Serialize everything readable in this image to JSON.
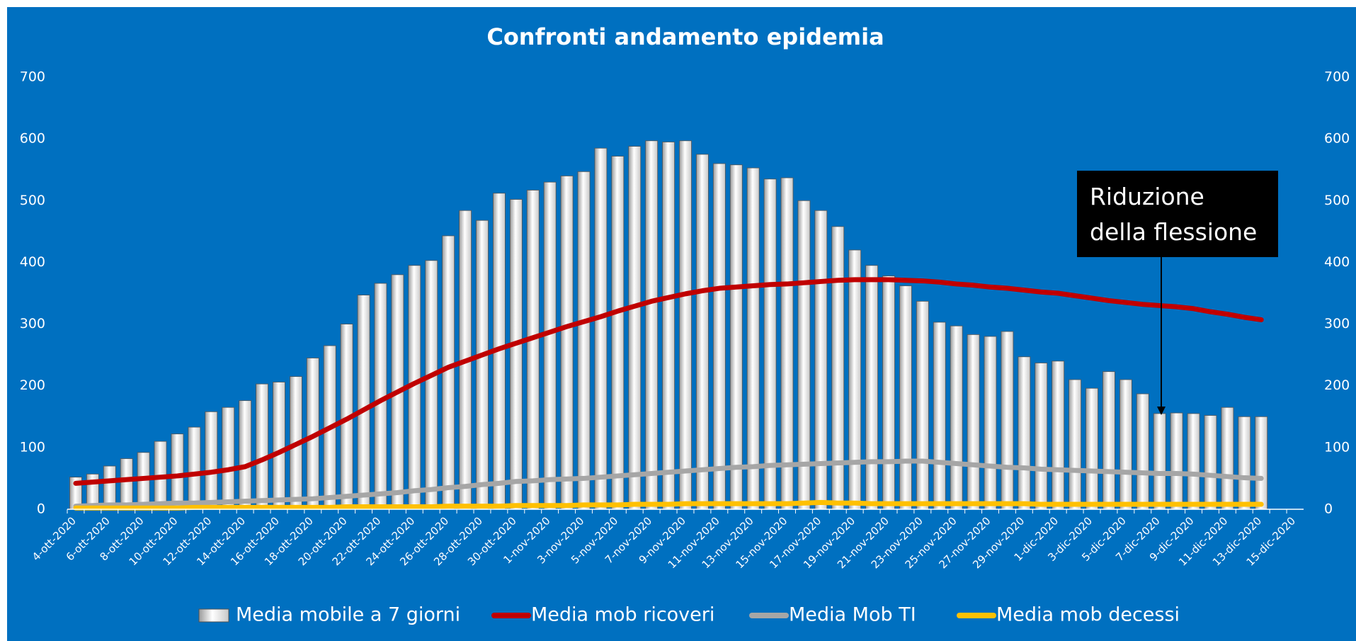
{
  "chart_data": {
    "type": "bar",
    "title": "Confronti andamento epidemia",
    "annotation": "Riduzione della flessione",
    "legend": "bottom",
    "grid": false,
    "categories": [
      "4-ott-2020",
      null,
      "6-ott-2020",
      null,
      "8-ott-2020",
      null,
      "10-ott-2020",
      null,
      "12-ott-2020",
      null,
      "14-ott-2020",
      null,
      "16-ott-2020",
      null,
      "18-ott-2020",
      null,
      "20-ott-2020",
      null,
      "22-ott-2020",
      null,
      "24-ott-2020",
      null,
      "26-ott-2020",
      null,
      "28-ott-2020",
      null,
      "30-ott-2020",
      null,
      "1-nov-2020",
      null,
      "3-nov-2020",
      null,
      "5-nov-2020",
      null,
      "7-nov-2020",
      null,
      "9-nov-2020",
      null,
      "11-nov-2020",
      null,
      "13-nov-2020",
      null,
      "15-nov-2020",
      null,
      "17-nov-2020",
      null,
      "19-nov-2020",
      null,
      "21-nov-2020",
      null,
      "23-nov-2020",
      null,
      "25-nov-2020",
      null,
      "27-nov-2020",
      null,
      "29-nov-2020",
      null,
      "1-dic-2020",
      null,
      "3-dic-2020",
      null,
      "5-dic-2020",
      null,
      "7-dic-2020",
      null,
      "9-dic-2020",
      null,
      "11-dic-2020",
      null,
      "13-dic-2020",
      null,
      "15-dic-2020"
    ],
    "series": [
      {
        "name": "Media mobile a 7 giorni",
        "type": "bar",
        "color": "#ffffff",
        "values": [
          52,
          57,
          70,
          82,
          92,
          110,
          122,
          133,
          158,
          165,
          176,
          203,
          206,
          215,
          245,
          265,
          300,
          347,
          366,
          380,
          395,
          403,
          443,
          484,
          468,
          512,
          502,
          517,
          530,
          540,
          547,
          585,
          572,
          588,
          597,
          595,
          597,
          575,
          560,
          558,
          553,
          535,
          537,
          500,
          484,
          458,
          420,
          395,
          378,
          362,
          337,
          303,
          297,
          283,
          280,
          288,
          247,
          237,
          240,
          210,
          196,
          223,
          210,
          187,
          155,
          156,
          155,
          152,
          165,
          150,
          150,
          null,
          null
        ]
      },
      {
        "name": "Media mob ricoveri",
        "type": "line",
        "color": "#c00000",
        "values": [
          42,
          44,
          46,
          48,
          50,
          52,
          54,
          57,
          60,
          64,
          69,
          80,
          92,
          105,
          118,
          132,
          146,
          161,
          176,
          190,
          204,
          217,
          230,
          240,
          250,
          260,
          269,
          278,
          287,
          296,
          304,
          312,
          321,
          329,
          337,
          343,
          349,
          354,
          358,
          360,
          362,
          364,
          365,
          367,
          369,
          371,
          372,
          372,
          372,
          371,
          370,
          368,
          365,
          363,
          360,
          358,
          355,
          352,
          350,
          346,
          342,
          338,
          335,
          332,
          330,
          328,
          325,
          320,
          316,
          311,
          307,
          null,
          null
        ]
      },
      {
        "name": "Media Mob TI",
        "type": "line",
        "color": "#a6a6a6",
        "values": [
          5,
          6,
          7,
          7,
          8,
          9,
          10,
          10,
          11,
          12,
          13,
          14,
          15,
          16,
          17,
          19,
          21,
          23,
          25,
          27,
          30,
          32,
          35,
          37,
          40,
          42,
          45,
          46,
          48,
          49,
          50,
          52,
          54,
          56,
          58,
          60,
          62,
          64,
          66,
          68,
          69,
          71,
          72,
          73,
          74,
          75,
          76,
          77,
          77,
          78,
          78,
          76,
          74,
          72,
          70,
          68,
          67,
          65,
          64,
          63,
          62,
          61,
          60,
          59,
          58,
          58,
          57,
          55,
          53,
          51,
          50,
          null,
          null
        ]
      },
      {
        "name": "Media mob decessi",
        "type": "line",
        "color": "#ffc000",
        "values": [
          2,
          2,
          2,
          2,
          2,
          2,
          2,
          3,
          3,
          3,
          3,
          3,
          3,
          3,
          3,
          3,
          4,
          4,
          4,
          4,
          4,
          4,
          5,
          5,
          5,
          5,
          6,
          6,
          6,
          6,
          7,
          7,
          7,
          8,
          8,
          8,
          9,
          9,
          9,
          9,
          9,
          9,
          9,
          10,
          11,
          10,
          10,
          9,
          9,
          9,
          9,
          9,
          9,
          9,
          9,
          9,
          9,
          8,
          8,
          8,
          8,
          8,
          8,
          8,
          8,
          8,
          8,
          8,
          8,
          8,
          8,
          null,
          null
        ]
      }
    ],
    "ylim": [
      0,
      700
    ],
    "yticks": [
      0,
      100,
      200,
      300,
      400,
      500,
      600,
      700
    ],
    "y2lim": [
      0,
      700
    ],
    "y2ticks": [
      0,
      100,
      200,
      300,
      400,
      500,
      600,
      700
    ]
  }
}
